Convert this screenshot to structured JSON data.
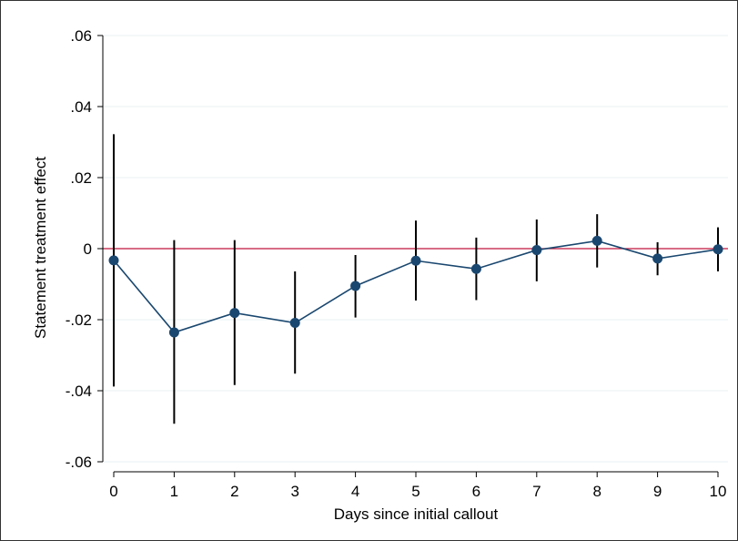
{
  "chart_data": {
    "type": "scatter",
    "title": "",
    "xlabel": "Days since initial callout",
    "ylabel": "Statement treatment effect",
    "x": [
      0,
      1,
      2,
      3,
      4,
      5,
      6,
      7,
      8,
      9,
      10
    ],
    "estimate": [
      -0.0033,
      -0.0236,
      -0.0181,
      -0.0209,
      -0.0105,
      -0.0034,
      -0.0057,
      -0.0004,
      0.0022,
      -0.0028,
      -0.0002
    ],
    "ci_lower": [
      -0.0388,
      -0.0493,
      -0.0384,
      -0.0352,
      -0.0194,
      -0.0146,
      -0.0145,
      -0.0092,
      -0.0053,
      -0.0075,
      -0.0064
    ],
    "ci_upper": [
      0.0322,
      0.0024,
      0.0024,
      -0.0064,
      -0.0018,
      0.0079,
      0.0031,
      0.0082,
      0.0097,
      0.0018,
      0.006
    ],
    "xlim": [
      0,
      10
    ],
    "ylim": [
      -0.06,
      0.06
    ],
    "x_ticks": [
      "0",
      "1",
      "2",
      "3",
      "4",
      "5",
      "6",
      "7",
      "8",
      "9",
      "10"
    ],
    "y_ticks": [
      {
        "value": 0.06,
        "label": ".06"
      },
      {
        "value": 0.04,
        "label": ".04"
      },
      {
        "value": 0.02,
        "label": ".02"
      },
      {
        "value": 0,
        "label": "0"
      },
      {
        "value": -0.02,
        "label": "-.02"
      },
      {
        "value": -0.04,
        "label": "-.04"
      },
      {
        "value": -0.06,
        "label": "-.06"
      }
    ],
    "reference_line": {
      "y": 0,
      "color": "#c0143c"
    },
    "marker_color": "#1a476f",
    "line_color": "#1a476f",
    "errorbar_color": "#000000",
    "grid": true,
    "legend": "none"
  }
}
